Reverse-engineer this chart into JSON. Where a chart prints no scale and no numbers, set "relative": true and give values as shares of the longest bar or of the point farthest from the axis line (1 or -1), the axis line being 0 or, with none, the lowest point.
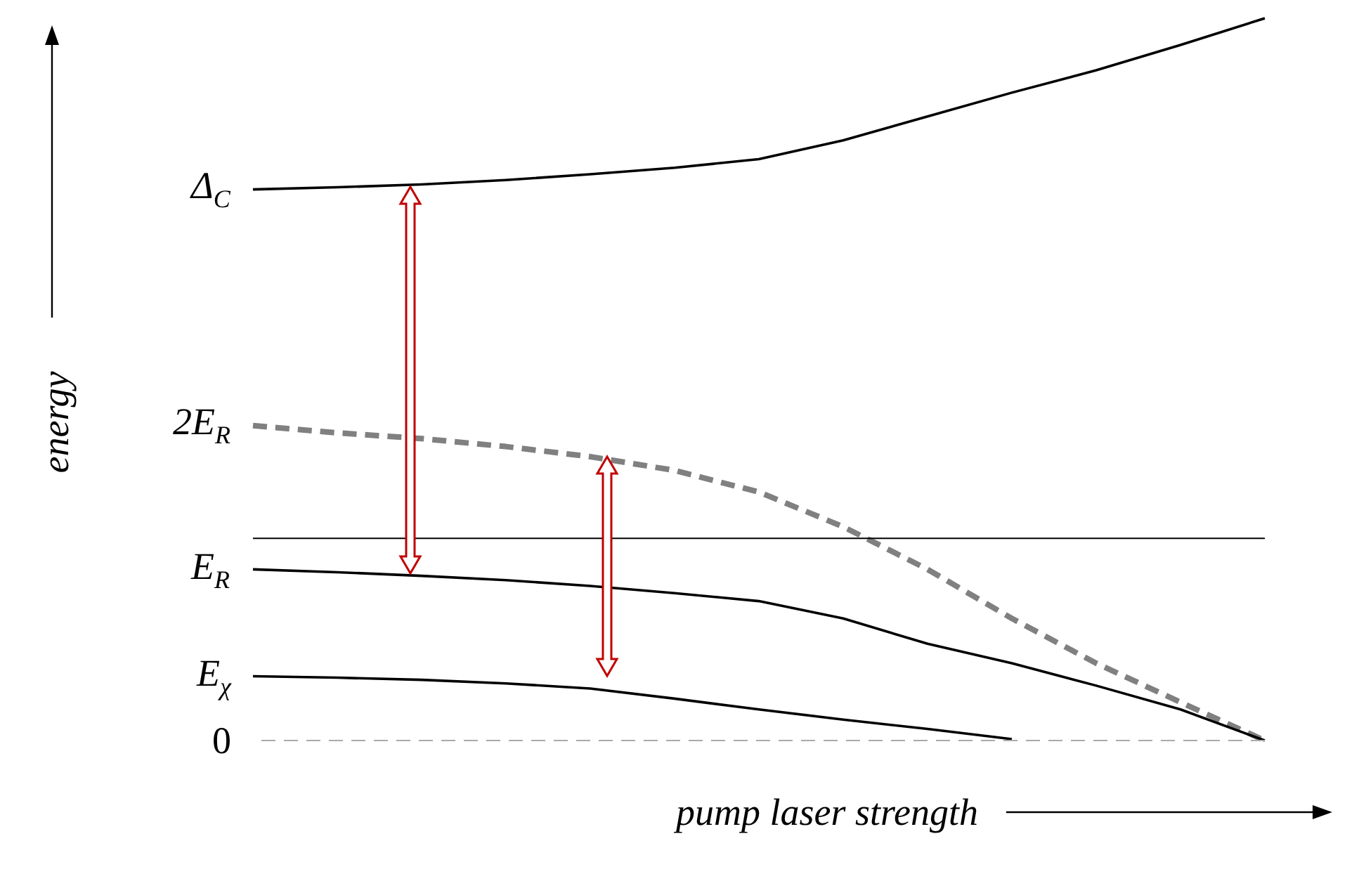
{
  "chart_data": {
    "type": "line",
    "relative": true,
    "xlabel": "pump laser strength",
    "ylabel": "energy",
    "categories": [
      null,
      null,
      null,
      null,
      null,
      null,
      null,
      null,
      null,
      null,
      null,
      null,
      null
    ],
    "series": [
      {
        "color": "#000000",
        "line_style": "solid",
        "values": [
          0.763,
          0.766,
          0.77,
          0.776,
          0.784,
          0.793,
          0.805,
          0.831,
          0.864,
          0.897,
          0.928,
          0.963,
          1
        ]
      },
      {
        "color": "#808080",
        "line_style": "dashed",
        "values": [
          0.436,
          0.426,
          0.418,
          0.407,
          0.393,
          0.374,
          0.344,
          0.296,
          0.237,
          0.169,
          0.107,
          0.053,
          0
        ]
      },
      {
        "color": "#000000",
        "line_style": "solid",
        "values": [
          0.237,
          0.233,
          0.228,
          0.222,
          0.214,
          0.204,
          0.193,
          0.169,
          0.134,
          0.107,
          0.076,
          0.043,
          0
        ]
      },
      {
        "color": "#000000",
        "line_style": "solid",
        "values": [
          0.089,
          0.087,
          0.084,
          0.079,
          0.072,
          0.058,
          0.043,
          0.029,
          0.016,
          0.002,
          null,
          null,
          null
        ]
      }
    ],
    "ref_lines": [
      {
        "axis": "y",
        "value": 0.28,
        "color": "#000000",
        "line_style": "solid"
      },
      {
        "axis": "y",
        "value": 0,
        "label": "0",
        "color": "#aaaaaa",
        "line_style": "dashed"
      }
    ],
    "annotations": [
      "Δ$_{C}$",
      "2E$_{R}$",
      "E$_{R}$",
      "E$_{χ}$"
    ]
  }
}
